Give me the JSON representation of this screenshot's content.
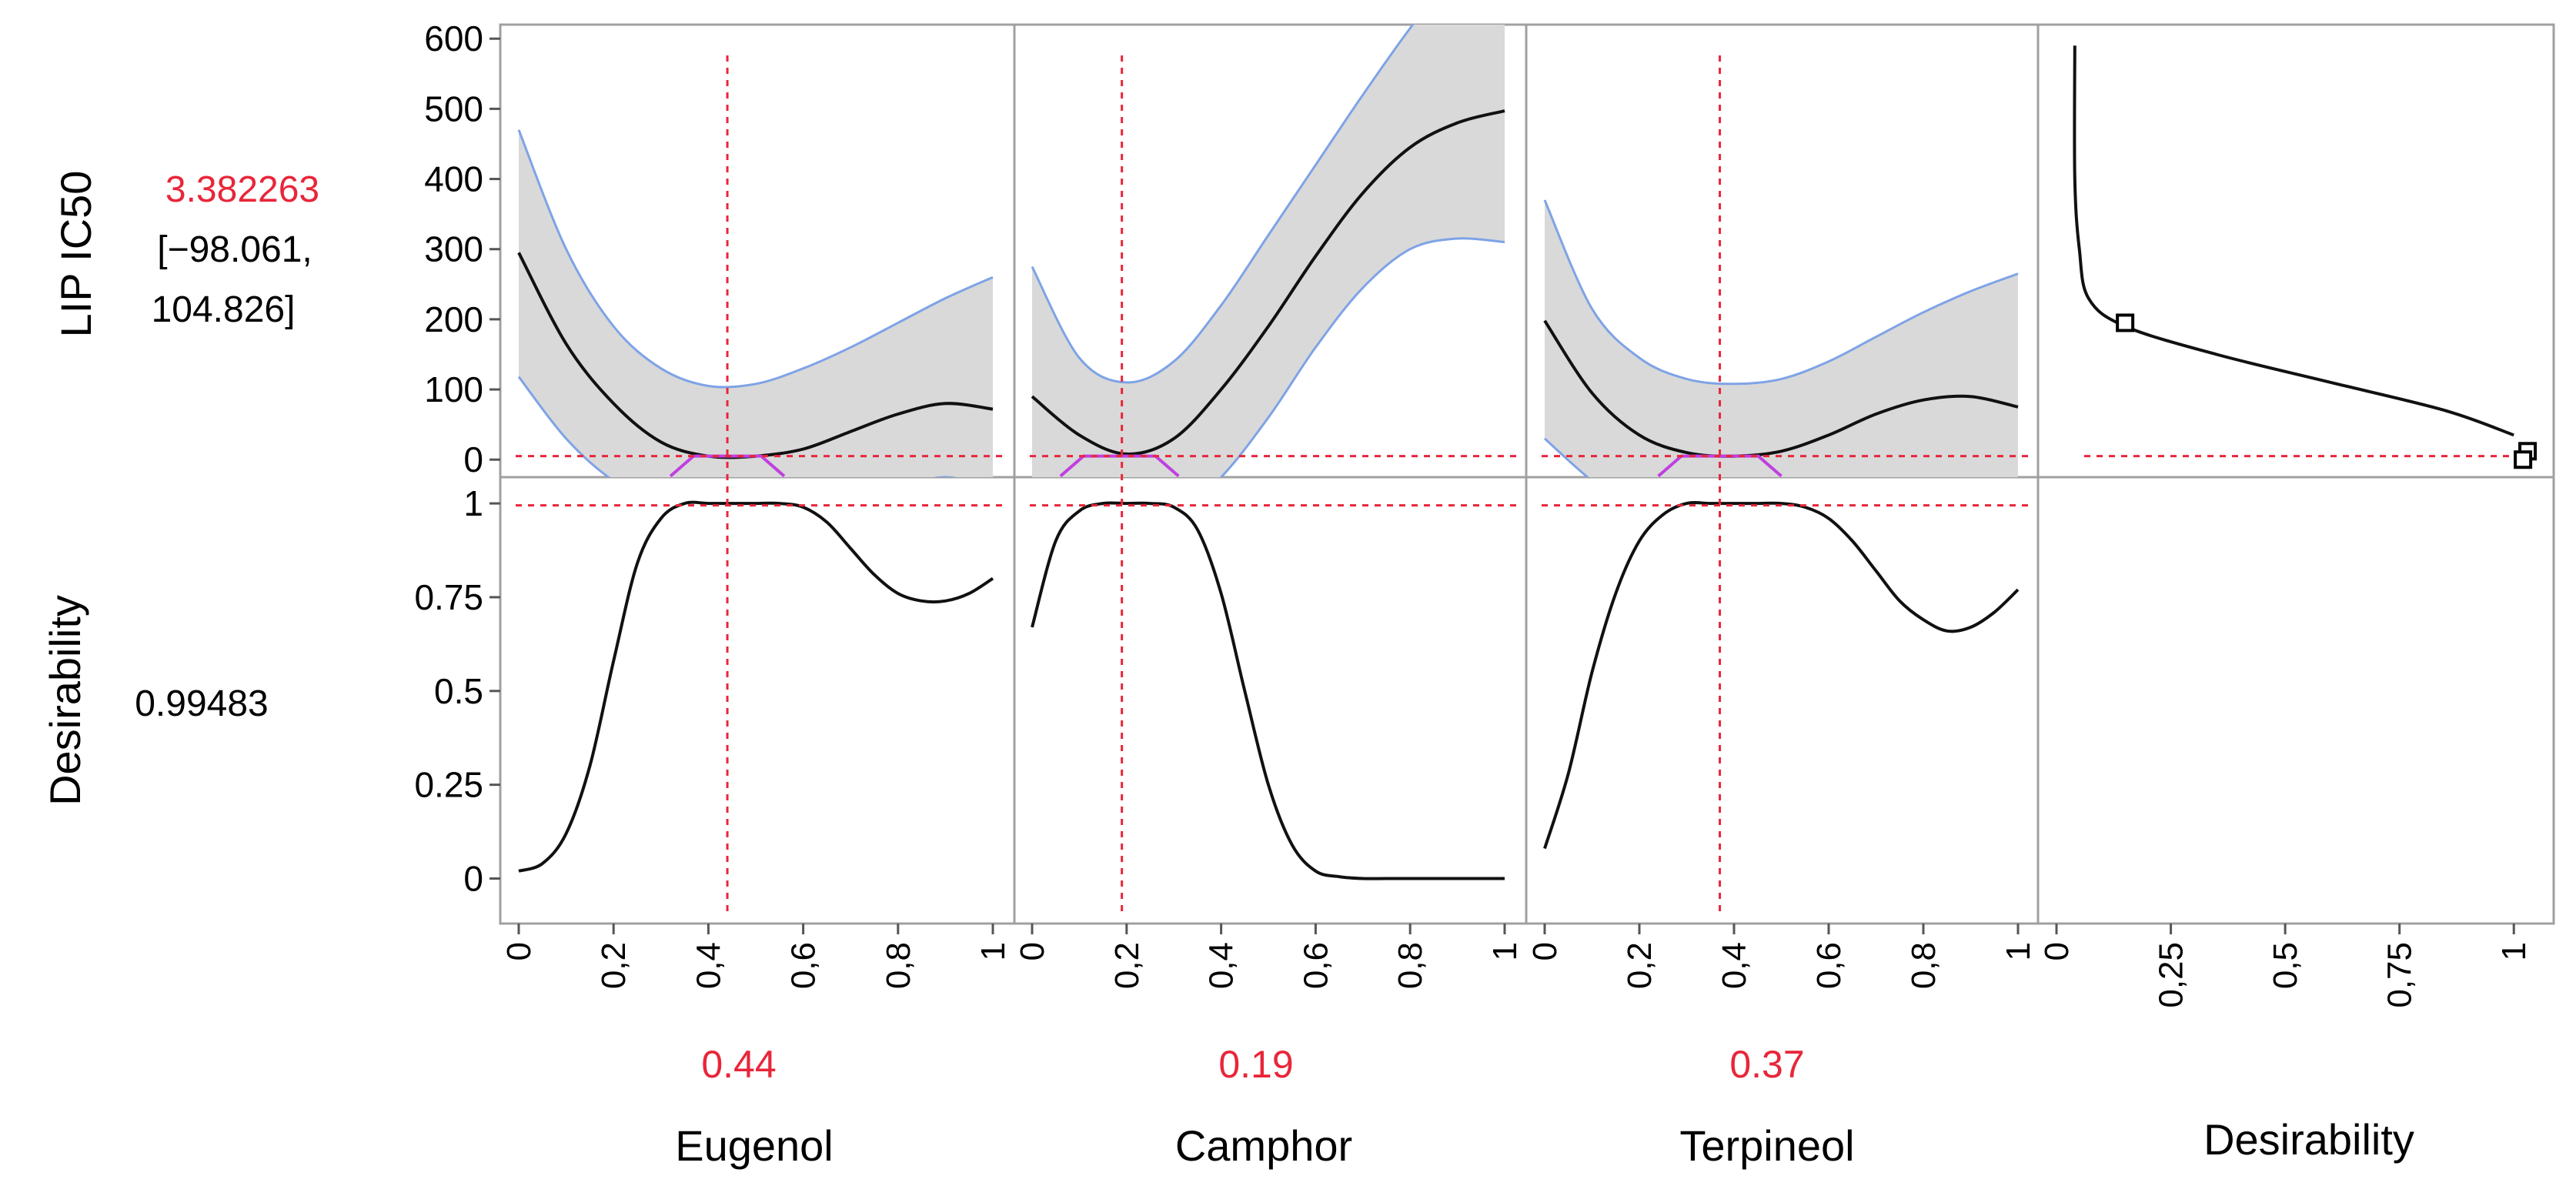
{
  "profiler": {
    "response": {
      "label": "LIP IC50",
      "predicted": "3.382263",
      "ci_line1": "[−98.061,",
      "ci_line2": "104.826]"
    },
    "desirability": {
      "label": "Desirability",
      "value": "0.99483"
    },
    "factors": [
      {
        "name": "Eugenol",
        "current": "0.44"
      },
      {
        "name": "Camphor",
        "current": "0.19"
      },
      {
        "name": "Terpineol",
        "current": "0.37"
      },
      {
        "name": "Desirability",
        "current": ""
      }
    ],
    "top_ticks": [
      "0",
      "100",
      "200",
      "300",
      "400",
      "500",
      "600"
    ],
    "bottom_ticks": [
      "0",
      "0.25",
      "0.5",
      "0.75",
      "1"
    ],
    "x_ticks": [
      "0",
      "0,2",
      "0,4",
      "0,6",
      "0,8",
      "1"
    ],
    "desir_x_ticks": [
      "0",
      "0,25",
      "0,5",
      "0,75",
      "1"
    ]
  },
  "colors": {
    "accent_red": "#E8263A",
    "band_fill": "#D9D9D9",
    "ci_line": "#7EA3E6",
    "curve": "#111111",
    "target_marker": "#C040E0",
    "frame": "#A0A0A0"
  },
  "chart_data": {
    "type": "line",
    "title": "",
    "layout": "2 x 4 prediction profiler grid",
    "rows": [
      {
        "name": "LIP IC50",
        "ylim": [
          -25,
          620
        ],
        "current": 3.382263,
        "ci": [
          -98.061,
          104.826
        ]
      },
      {
        "name": "Desirability",
        "ylim": [
          -0.12,
          1.07
        ],
        "current": 0.99483
      }
    ],
    "panels": [
      {
        "factor": "Eugenol",
        "current_x": 0.44,
        "xlim": [
          0,
          1
        ],
        "ic50": {
          "x": [
            0,
            0.1,
            0.2,
            0.3,
            0.4,
            0.5,
            0.6,
            0.7,
            0.8,
            0.9,
            1.0
          ],
          "mean": [
            295,
            165,
            80,
            25,
            5,
            5,
            15,
            40,
            65,
            80,
            72
          ],
          "upper": [
            470,
            300,
            190,
            130,
            105,
            108,
            130,
            160,
            195,
            230,
            260
          ],
          "lower": [
            118,
            30,
            -30,
            -60,
            -95,
            -95,
            -80,
            -60,
            -40,
            -25,
            -40
          ]
        },
        "desirability": {
          "x": [
            0,
            0.05,
            0.1,
            0.15,
            0.2,
            0.25,
            0.3,
            0.35,
            0.4,
            0.45,
            0.5,
            0.55,
            0.6,
            0.65,
            0.7,
            0.75,
            0.8,
            0.85,
            0.9,
            0.95,
            1.0
          ],
          "values": [
            0.02,
            0.04,
            0.12,
            0.3,
            0.58,
            0.84,
            0.96,
            1.0,
            1.0,
            1.0,
            1.0,
            1.0,
            0.99,
            0.95,
            0.88,
            0.81,
            0.76,
            0.74,
            0.74,
            0.76,
            0.8
          ]
        },
        "target_x": [
          0.32,
          0.56
        ]
      },
      {
        "factor": "Camphor",
        "current_x": 0.19,
        "xlim": [
          0,
          1
        ],
        "ic50": {
          "x": [
            0,
            0.1,
            0.2,
            0.3,
            0.4,
            0.5,
            0.6,
            0.7,
            0.8,
            0.9,
            1.0
          ],
          "mean": [
            90,
            35,
            8,
            30,
            100,
            190,
            290,
            380,
            445,
            480,
            497
          ],
          "upper": [
            275,
            145,
            110,
            140,
            220,
            320,
            420,
            520,
            615,
            700,
            780
          ],
          "lower": [
            -100,
            -75,
            -100,
            -80,
            -25,
            60,
            160,
            245,
            300,
            315,
            310
          ]
        },
        "desirability": {
          "x": [
            0,
            0.05,
            0.1,
            0.15,
            0.2,
            0.25,
            0.3,
            0.35,
            0.4,
            0.45,
            0.5,
            0.55,
            0.6,
            0.65,
            0.7,
            0.75,
            0.8,
            0.85,
            0.9,
            0.95,
            1.0
          ],
          "values": [
            0.67,
            0.9,
            0.98,
            1.0,
            1.0,
            1.0,
            0.99,
            0.93,
            0.76,
            0.5,
            0.25,
            0.09,
            0.02,
            0.005,
            0.0,
            0.0,
            0.0,
            0.0,
            0.0,
            0.0,
            0.0
          ]
        },
        "target_x": [
          0.06,
          0.31
        ]
      },
      {
        "factor": "Terpineol",
        "current_x": 0.37,
        "xlim": [
          0,
          1
        ],
        "ic50": {
          "x": [
            0,
            0.1,
            0.2,
            0.3,
            0.4,
            0.5,
            0.6,
            0.7,
            0.8,
            0.9,
            1.0
          ],
          "mean": [
            198,
            95,
            35,
            10,
            5,
            12,
            35,
            65,
            85,
            90,
            75
          ],
          "upper": [
            370,
            215,
            145,
            115,
            108,
            115,
            140,
            175,
            210,
            240,
            265
          ],
          "lower": [
            30,
            -30,
            -75,
            -95,
            -100,
            -95,
            -75,
            -55,
            -40,
            -45,
            -60
          ]
        },
        "desirability": {
          "x": [
            0,
            0.05,
            0.1,
            0.15,
            0.2,
            0.25,
            0.3,
            0.35,
            0.4,
            0.45,
            0.5,
            0.55,
            0.6,
            0.65,
            0.7,
            0.75,
            0.8,
            0.85,
            0.9,
            0.95,
            1.0
          ],
          "values": [
            0.08,
            0.28,
            0.55,
            0.76,
            0.9,
            0.97,
            1.0,
            1.0,
            1.0,
            1.0,
            1.0,
            0.99,
            0.96,
            0.9,
            0.82,
            0.74,
            0.69,
            0.66,
            0.67,
            0.71,
            0.77
          ]
        },
        "target_x": [
          0.24,
          0.5
        ]
      },
      {
        "factor": "Desirability",
        "xlim": [
          -0.12,
          1.12
        ],
        "function": {
          "desirability": [
            0.04,
            0.04,
            0.05,
            0.07,
            0.15,
            0.35,
            0.6,
            0.85,
            1.0
          ],
          "ic50": [
            590,
            400,
            300,
            230,
            190,
            150,
            110,
            70,
            35
          ]
        },
        "markers": [
          {
            "x": 0.15,
            "y": 195
          },
          {
            "x": 1.03,
            "y": 12
          },
          {
            "x": 1.02,
            "y": 0
          }
        ]
      }
    ]
  }
}
